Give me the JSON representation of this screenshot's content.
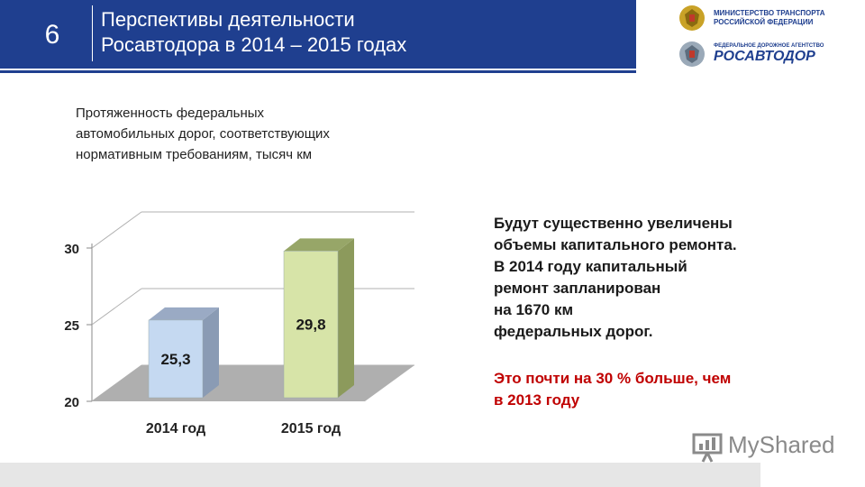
{
  "header": {
    "slide_number": "6",
    "title_line1": "Перспективы деятельности",
    "title_line2": "Росавтодора в 2014 – 2015 годах"
  },
  "logos": {
    "ministry_line1": "МИНИСТЕРСТВО ТРАНСПОРТА",
    "ministry_line2": "РОССИЙСКОЙ ФЕДЕРАЦИИ",
    "agency_small": "ФЕДЕРАЛЬНОЕ ДОРОЖНОЕ АГЕНТСТВО",
    "agency_name": "РОСАВТОДОР"
  },
  "chart_caption": {
    "line1": "Протяженность федеральных",
    "line2": "автомобильных дорог, соответствующих",
    "line3": "нормативным требованиям, тысяч км"
  },
  "chart_data": {
    "type": "bar",
    "categories": [
      "2014 год",
      "2015 год"
    ],
    "values": [
      25.3,
      29.8
    ],
    "value_labels": [
      "25,3",
      "29,8"
    ],
    "title": "Протяженность федеральных автомобильных дорог, соответствующих нормативным требованиям, тысяч км",
    "ylim": [
      20,
      30
    ],
    "yticks": [
      20,
      25,
      30
    ],
    "grid": true,
    "bar_colors": [
      "#c5d9f1",
      "#d7e4a8"
    ]
  },
  "side_text": {
    "line1": "Будут существенно увеличены",
    "line2": "объемы капитального ремонта.",
    "line3": "В 2014 году капитальный",
    "line4": "ремонт запланирован",
    "line5": "на 1670 км",
    "line6": "федеральных дорог.",
    "highlight_line1": "Это почти на 30 % больше, чем",
    "highlight_line2": "в 2013 году"
  },
  "watermark": {
    "text": "MyShared"
  },
  "colors": {
    "header_bg": "#1f3f8f",
    "highlight": "#c00000"
  }
}
